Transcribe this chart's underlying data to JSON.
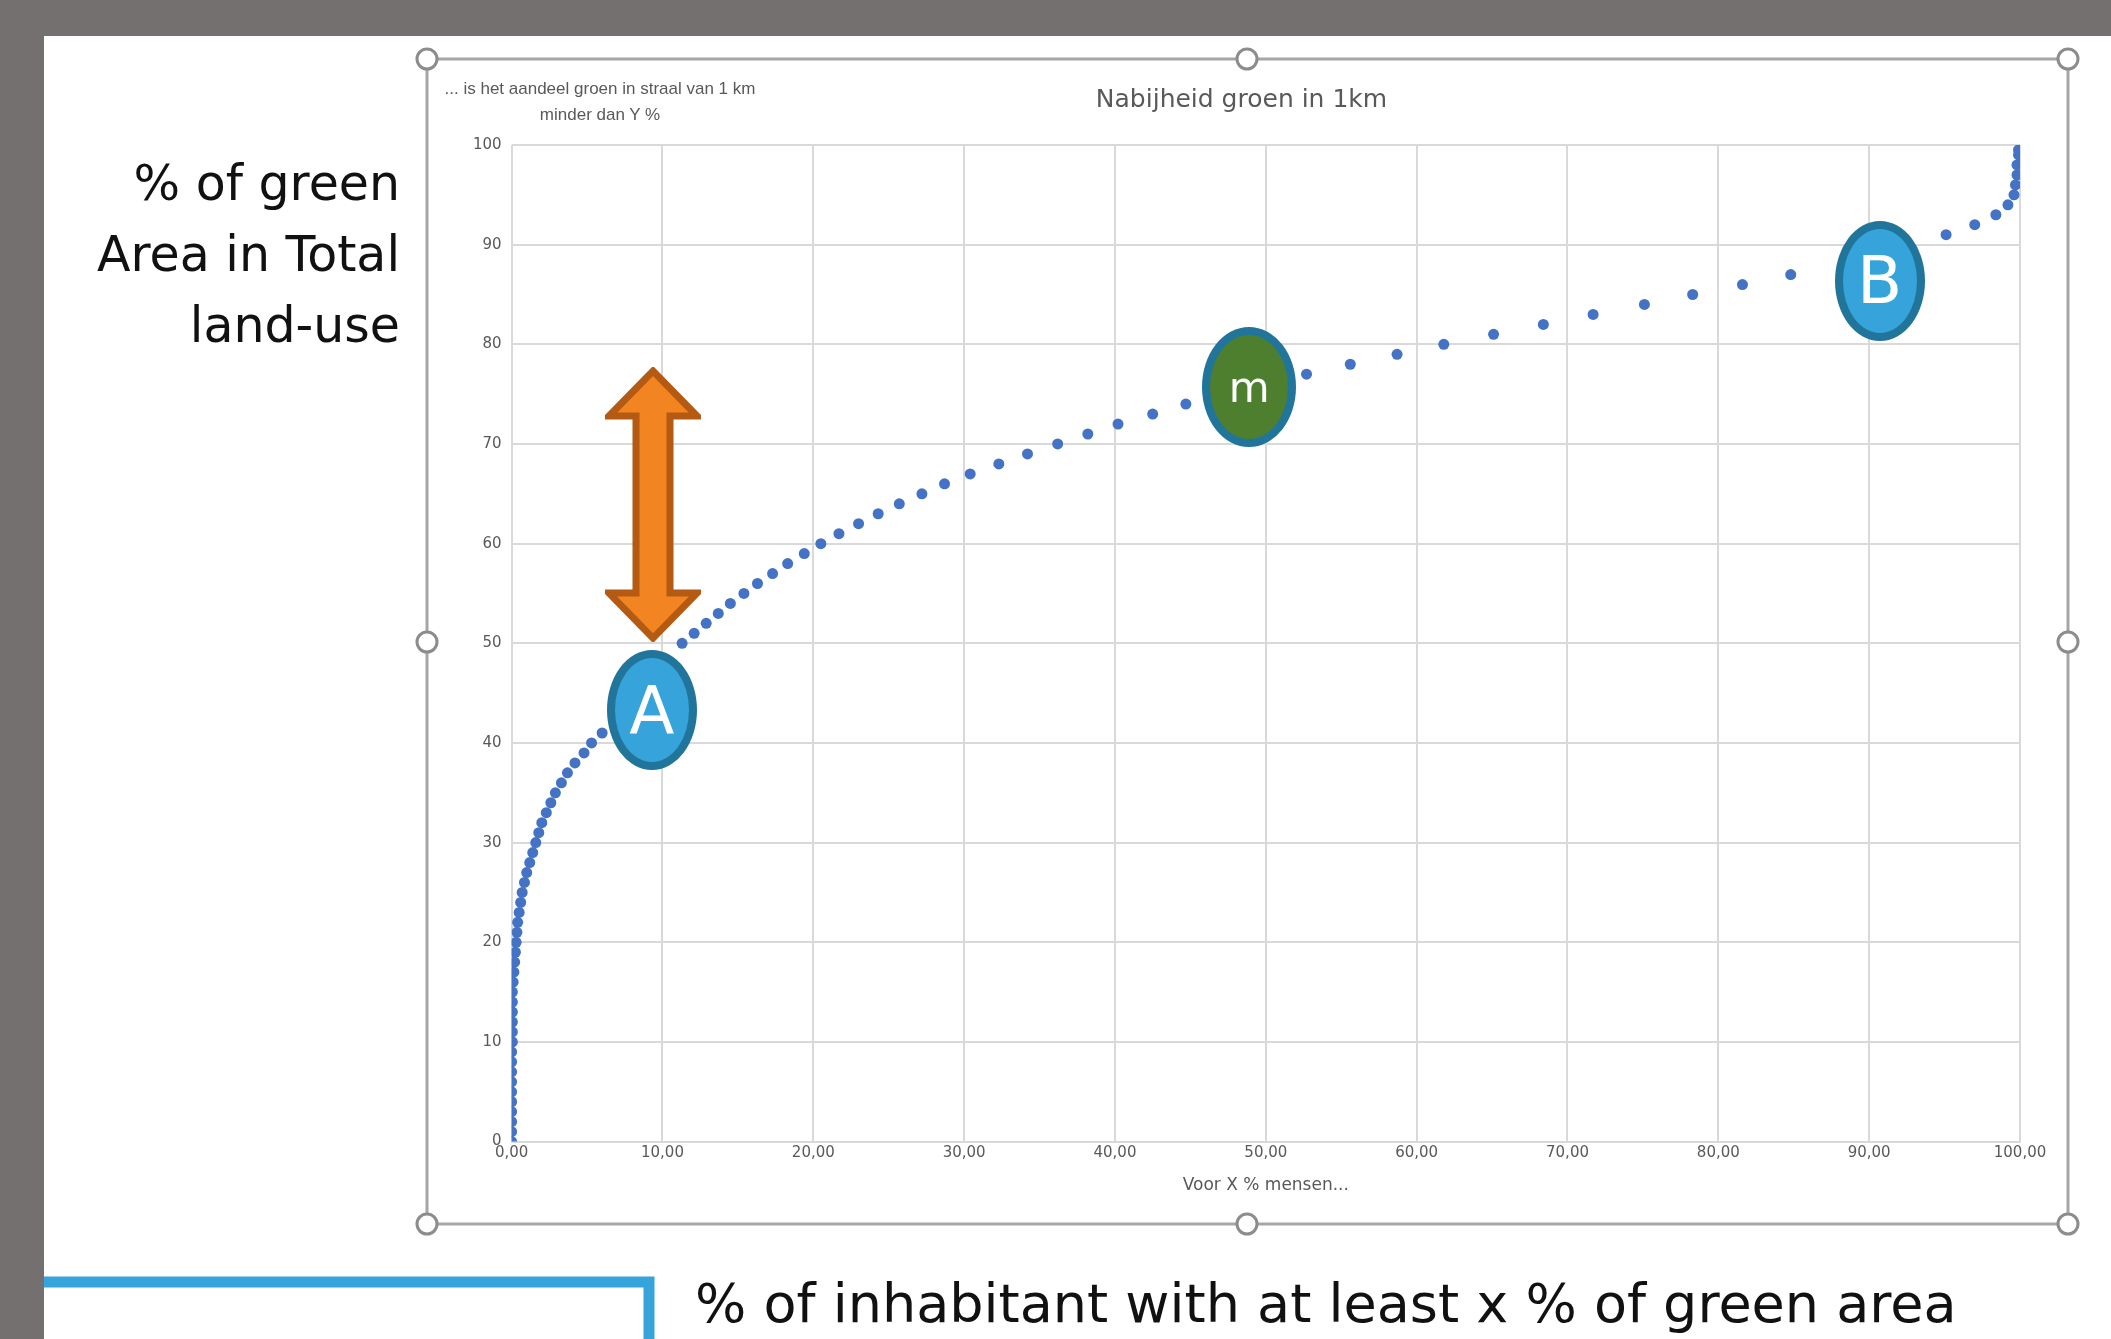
{
  "chart_data": {
    "type": "scatter",
    "title": "Nabijheid groen in 1km",
    "xlabel": "Voor X % mensen...",
    "ylabel": "... is het aandeel groen in  straal van 1 km minder dan Y %",
    "series": [
      {
        "color": "#4472c4",
        "x": [
          0,
          0,
          0,
          0,
          0,
          0,
          0,
          0,
          0,
          0,
          0.05,
          0.05,
          0.05,
          0.05,
          0.05,
          0.05,
          0.1,
          0.15,
          0.2,
          0.25,
          0.3,
          0.35,
          0.4,
          0.5,
          0.6,
          0.7,
          0.85,
          1.0,
          1.2,
          1.4,
          1.6,
          1.8,
          2.0,
          2.3,
          2.6,
          2.9,
          3.3,
          3.7,
          4.2,
          4.8,
          5.3,
          6.0,
          10.7,
          11.3,
          12.1,
          12.9,
          13.7,
          14.5,
          15.4,
          16.3,
          17.3,
          18.3,
          19.4,
          20.5,
          21.7,
          23.0,
          24.3,
          25.7,
          27.2,
          28.7,
          30.4,
          32.3,
          34.2,
          36.2,
          38.2,
          40.2,
          42.5,
          44.7,
          52.7,
          55.6,
          58.7,
          61.8,
          65.1,
          68.4,
          71.7,
          75.1,
          78.3,
          81.6,
          84.8,
          87.8,
          93.1,
          95.1,
          97.0,
          98.4,
          99.2,
          99.6,
          99.7,
          99.8,
          99.8,
          99.9,
          99.9
        ],
        "values": [
          0,
          1,
          2,
          3,
          4,
          5,
          6,
          7,
          8,
          9,
          10,
          11,
          12,
          13,
          14,
          15,
          16,
          17,
          18,
          19,
          20,
          21,
          22,
          23,
          24,
          25,
          26,
          27,
          28,
          29,
          30,
          31,
          32,
          33,
          34,
          35,
          36,
          37,
          38,
          39,
          40,
          41,
          null,
          50,
          51,
          52,
          53,
          54,
          55,
          56,
          57,
          58,
          59,
          60,
          61,
          62,
          63,
          64,
          65,
          66,
          67,
          68,
          69,
          70,
          71,
          72,
          73,
          74,
          77,
          78,
          79,
          80,
          81,
          82,
          83,
          84,
          85,
          86,
          87,
          null,
          null,
          91,
          92,
          93,
          94,
          95,
          96,
          97,
          98,
          99,
          99.5
        ]
      }
    ],
    "xlim": [
      0,
      100
    ],
    "xticks": [
      {
        "value": 0,
        "label": "0,00"
      },
      {
        "value": 10,
        "label": "10,00"
      },
      {
        "value": 20,
        "label": "20,00"
      },
      {
        "value": 30,
        "label": "30,00"
      },
      {
        "value": 40,
        "label": "40,00"
      },
      {
        "value": 50,
        "label": "50,00"
      },
      {
        "value": 60,
        "label": "60,00"
      },
      {
        "value": 70,
        "label": "70,00"
      },
      {
        "value": 80,
        "label": "80,00"
      },
      {
        "value": 90,
        "label": "90,00"
      },
      {
        "value": 100,
        "label": "100,00"
      }
    ],
    "ylim": [
      0,
      100
    ],
    "yticks": [
      0,
      10,
      20,
      30,
      40,
      50,
      60,
      70,
      80,
      90,
      100
    ],
    "grid": true,
    "legend": false,
    "marker": "circle",
    "annotations": [
      "% of green Area in Total land-use",
      "% of inhabitant with at least x % of green area",
      "A",
      "m",
      "B"
    ]
  }
}
